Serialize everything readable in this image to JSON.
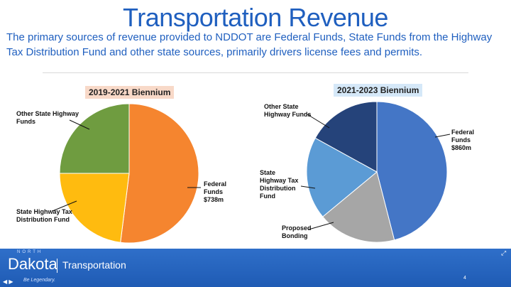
{
  "slide": {
    "title": "Transportation Revenue",
    "subtitle": "The primary sources of revenue provided to NDDOT are Federal Funds, State Funds from the Highway Tax Distribution Fund and other state sources, primarily drivers license fees and permits."
  },
  "chart_data": [
    {
      "type": "pie",
      "title": "2019-2021 Biennium",
      "title_bg": "#f8d9c8",
      "slices": [
        {
          "label": "Federal Funds $738m",
          "value": 52,
          "color": "#f5852f"
        },
        {
          "label": "State Highway Tax Distribution Fund",
          "value": 23,
          "color": "#ffbb0f"
        },
        {
          "label": "Other State Highway Funds",
          "value": 25,
          "color": "#6f9c40"
        }
      ]
    },
    {
      "type": "pie",
      "title": "2021-2023 Biennium",
      "title_bg": "#d5e8f8",
      "slices": [
        {
          "label": "Federal Funds $860m",
          "value": 46,
          "color": "#4476c6"
        },
        {
          "label": "Proposed Bonding",
          "value": 18,
          "color": "#a6a6a6"
        },
        {
          "label": "State Highway Tax Distribution Fund",
          "value": 19,
          "color": "#5b9bd5"
        },
        {
          "label": "Other State Highway Funds",
          "value": 17,
          "color": "#25437a"
        }
      ]
    }
  ],
  "labels": {
    "left": {
      "federal": "Federal Funds $738m",
      "state_tax": "State Highway Tax Distribution Fund",
      "other": "Other State Highway Funds"
    },
    "right": {
      "federal": "Federal Funds $860m",
      "bonding": "Proposed Bonding",
      "state_tax": "State Highway Tax Distribution Fund",
      "other": "Other State Highway Funds"
    }
  },
  "footer": {
    "north": "NORTH",
    "dakota": "Dakota",
    "dept": "Transportation",
    "slogan": "Be Legendary.",
    "page": "4"
  }
}
